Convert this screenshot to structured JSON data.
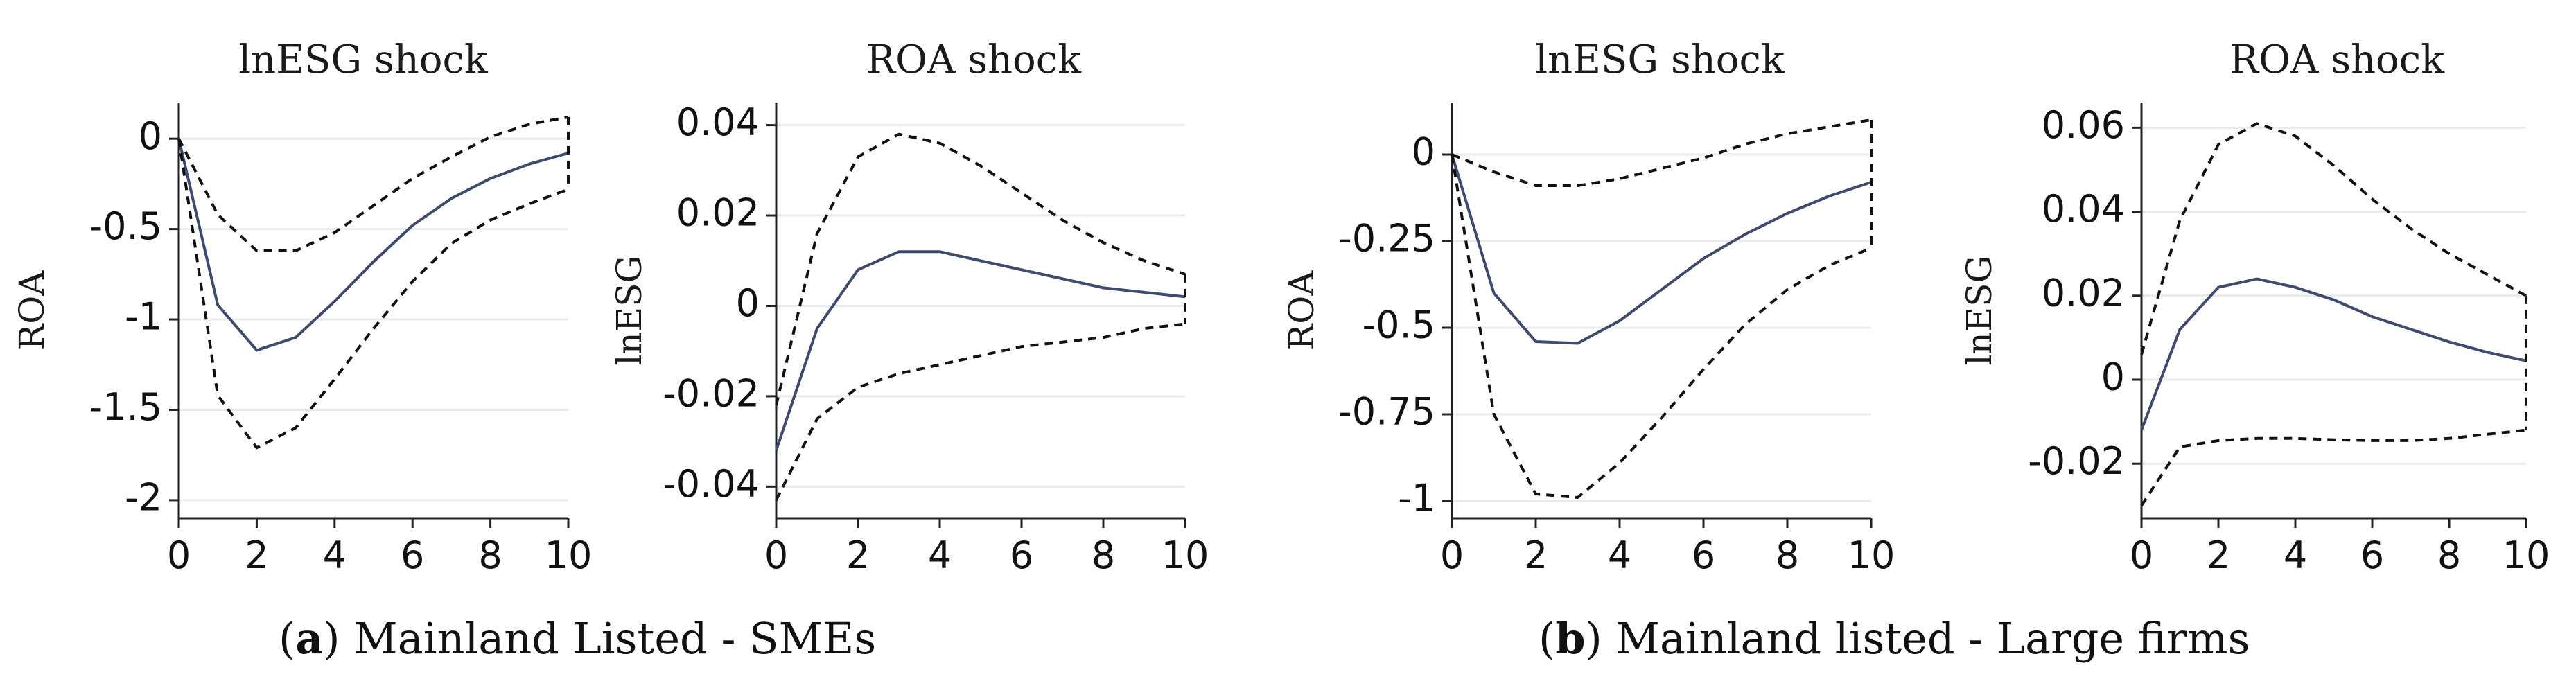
{
  "captions": [
    {
      "letter": "a",
      "text": "Mainland Listed - SMEs"
    },
    {
      "letter": "b",
      "text": "Mainland listed - Large firms"
    }
  ],
  "colors": {
    "irf_line": "#3e4a6e",
    "ci_line": "#111111",
    "grid": "#e4ecf0"
  },
  "chart_data": [
    {
      "type": "line",
      "panel": "a",
      "title": "lnESG shock",
      "xlabel": "",
      "ylabel": "ROA",
      "x": [
        0,
        1,
        2,
        3,
        4,
        5,
        6,
        7,
        8,
        9,
        10
      ],
      "xticks": [
        0,
        2,
        4,
        6,
        8,
        10
      ],
      "xtick_labels": [
        "0",
        "2",
        "4",
        "6",
        "8",
        "10"
      ],
      "yticks": [
        0,
        -0.5,
        -1,
        -1.5,
        -2
      ],
      "ytick_labels": [
        "0",
        "-0.5",
        "-1",
        "-1.5",
        "-2"
      ],
      "xlim": [
        0,
        10
      ],
      "ylim": [
        -2.1,
        0.2
      ],
      "series": [
        {
          "name": "irf",
          "values": [
            0,
            -0.92,
            -1.17,
            -1.1,
            -0.9,
            -0.68,
            -0.48,
            -0.33,
            -0.22,
            -0.14,
            -0.08
          ]
        },
        {
          "name": "upper",
          "values": [
            0,
            -0.42,
            -0.62,
            -0.62,
            -0.52,
            -0.37,
            -0.22,
            -0.1,
            0.01,
            0.08,
            0.12
          ]
        },
        {
          "name": "lower",
          "values": [
            0,
            -1.42,
            -1.71,
            -1.6,
            -1.33,
            -1.05,
            -0.79,
            -0.58,
            -0.45,
            -0.36,
            -0.28
          ]
        }
      ]
    },
    {
      "type": "line",
      "panel": "a",
      "title": "ROA shock",
      "xlabel": "",
      "ylabel": "lnESG",
      "x": [
        0,
        1,
        2,
        3,
        4,
        5,
        6,
        7,
        8,
        9,
        10
      ],
      "xticks": [
        0,
        2,
        4,
        6,
        8,
        10
      ],
      "xtick_labels": [
        "0",
        "2",
        "4",
        "6",
        "8",
        "10"
      ],
      "yticks": [
        0.04,
        0.02,
        0,
        -0.02,
        -0.04
      ],
      "ytick_labels": [
        "0.04",
        "0.02",
        "0",
        "-0.02",
        "-0.04"
      ],
      "xlim": [
        0,
        10
      ],
      "ylim": [
        -0.047,
        0.045
      ],
      "series": [
        {
          "name": "irf",
          "values": [
            -0.032,
            -0.005,
            0.008,
            0.012,
            0.012,
            0.01,
            0.008,
            0.006,
            0.004,
            0.003,
            0.002
          ]
        },
        {
          "name": "upper",
          "values": [
            -0.022,
            0.016,
            0.033,
            0.038,
            0.036,
            0.031,
            0.025,
            0.019,
            0.014,
            0.01,
            0.007
          ]
        },
        {
          "name": "lower",
          "values": [
            -0.043,
            -0.025,
            -0.018,
            -0.015,
            -0.013,
            -0.011,
            -0.009,
            -0.008,
            -0.007,
            -0.005,
            -0.004
          ]
        }
      ]
    },
    {
      "type": "line",
      "panel": "b",
      "title": "lnESG shock",
      "xlabel": "",
      "ylabel": "ROA",
      "x": [
        0,
        1,
        2,
        3,
        4,
        5,
        6,
        7,
        8,
        9,
        10
      ],
      "xticks": [
        0,
        2,
        4,
        6,
        8,
        10
      ],
      "xtick_labels": [
        "0",
        "2",
        "4",
        "6",
        "8",
        "10"
      ],
      "yticks": [
        0,
        -0.25,
        -0.5,
        -0.75,
        -1
      ],
      "ytick_labels": [
        "0",
        "-0.25",
        "-0.5",
        "-0.75",
        "-1"
      ],
      "xlim": [
        0,
        10
      ],
      "ylim": [
        -1.05,
        0.15
      ],
      "series": [
        {
          "name": "irf",
          "values": [
            0,
            -0.4,
            -0.54,
            -0.545,
            -0.48,
            -0.39,
            -0.3,
            -0.23,
            -0.17,
            -0.12,
            -0.08
          ]
        },
        {
          "name": "upper",
          "values": [
            0,
            -0.05,
            -0.09,
            -0.09,
            -0.07,
            -0.04,
            -0.01,
            0.03,
            0.06,
            0.08,
            0.1
          ]
        },
        {
          "name": "lower",
          "values": [
            0,
            -0.75,
            -0.98,
            -0.99,
            -0.89,
            -0.76,
            -0.62,
            -0.49,
            -0.39,
            -0.32,
            -0.27
          ]
        }
      ]
    },
    {
      "type": "line",
      "panel": "b",
      "title": "ROA shock",
      "xlabel": "",
      "ylabel": "lnESG",
      "x": [
        0,
        1,
        2,
        3,
        4,
        5,
        6,
        7,
        8,
        9,
        10
      ],
      "xticks": [
        0,
        2,
        4,
        6,
        8,
        10
      ],
      "xtick_labels": [
        "0",
        "2",
        "4",
        "6",
        "8",
        "10"
      ],
      "yticks": [
        0.06,
        0.04,
        0.02,
        0,
        -0.02
      ],
      "ytick_labels": [
        "0.06",
        "0.04",
        "0.02",
        "0",
        "-0.02"
      ],
      "xlim": [
        0,
        10
      ],
      "ylim": [
        -0.033,
        0.066
      ],
      "series": [
        {
          "name": "irf",
          "values": [
            -0.012,
            0.012,
            0.022,
            0.024,
            0.022,
            0.019,
            0.015,
            0.012,
            0.009,
            0.0065,
            0.0045
          ]
        },
        {
          "name": "upper",
          "values": [
            0.006,
            0.038,
            0.056,
            0.061,
            0.058,
            0.051,
            0.043,
            0.036,
            0.03,
            0.025,
            0.02
          ]
        },
        {
          "name": "lower",
          "values": [
            -0.03,
            -0.016,
            -0.0145,
            -0.014,
            -0.014,
            -0.0143,
            -0.0145,
            -0.0145,
            -0.014,
            -0.013,
            -0.012
          ]
        }
      ]
    }
  ]
}
